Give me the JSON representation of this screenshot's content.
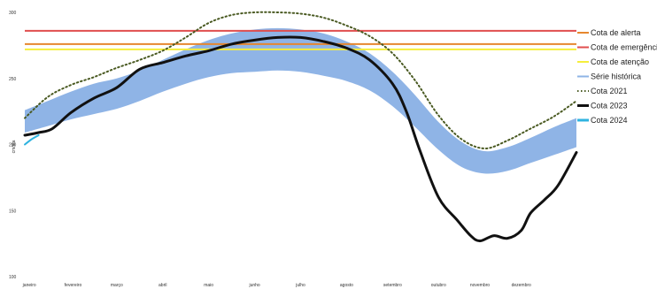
{
  "chart_data": {
    "type": "line",
    "ylabel": "cm/dia",
    "ylim": [
      100,
      300
    ],
    "yticks": [
      "100",
      "150",
      "200",
      "250",
      "300"
    ],
    "x_domain": [
      0,
      12
    ],
    "months": [
      {
        "label": "janeiro",
        "x": 0.1
      },
      {
        "label": "fevereiro",
        "x": 1.05
      },
      {
        "label": "março",
        "x": 2.0
      },
      {
        "label": "abril",
        "x": 3.0
      },
      {
        "label": "maio",
        "x": 4.0
      },
      {
        "label": "junho",
        "x": 5.0
      },
      {
        "label": "julho",
        "x": 6.0
      },
      {
        "label": "agosto",
        "x": 7.0
      },
      {
        "label": "setembro",
        "x": 8.0
      },
      {
        "label": "outubro",
        "x": 9.0
      },
      {
        "label": "novembro",
        "x": 9.9
      },
      {
        "label": "dezembro",
        "x": 10.8
      }
    ],
    "thresholds": [
      {
        "name": "Cota de alerta",
        "value": 276,
        "color": "#e6872e"
      },
      {
        "name": "Cota de emergência",
        "value": 286,
        "color": "#e04e4e"
      },
      {
        "name": "Cota de atenção",
        "value": 272,
        "color": "#f5ee3c"
      }
    ],
    "band": {
      "name": "Série histórica",
      "color": "#8fb4e6",
      "x": [
        0,
        0.5,
        1,
        1.5,
        2,
        2.5,
        3,
        3.5,
        4,
        4.5,
        5,
        5.5,
        6,
        6.5,
        7,
        7.5,
        8,
        8.5,
        9,
        9.5,
        10,
        10.5,
        11,
        11.5,
        12
      ],
      "lower": [
        209,
        214,
        219,
        223,
        227,
        233,
        240,
        246,
        251,
        254,
        255,
        256,
        255,
        252,
        248,
        241,
        229,
        213,
        196,
        183,
        178,
        180,
        186,
        192,
        198
      ],
      "upper": [
        226,
        233,
        240,
        246,
        250,
        256,
        264,
        272,
        279,
        284,
        287,
        288,
        287,
        284,
        278,
        269,
        255,
        237,
        217,
        202,
        195,
        198,
        205,
        213,
        220
      ]
    },
    "series": [
      {
        "name": "Cota 2021",
        "color": "#4a5a22",
        "style": "dotted",
        "x": [
          0,
          0.5,
          1,
          1.5,
          2,
          2.5,
          3,
          3.5,
          4,
          4.5,
          5,
          5.5,
          6,
          6.5,
          7,
          7.5,
          8,
          8.5,
          9,
          9.5,
          10,
          10.5,
          11,
          11.5,
          12
        ],
        "values": [
          220,
          236,
          245,
          251,
          258,
          264,
          271,
          281,
          292,
          298,
          300,
          300,
          299,
          296,
          290,
          282,
          269,
          248,
          222,
          204,
          197,
          203,
          212,
          221,
          233
        ]
      },
      {
        "name": "Cota 2023",
        "color": "#111111",
        "style": "solid",
        "x": [
          0,
          0.3,
          0.6,
          1,
          1.5,
          2,
          2.5,
          3,
          3.5,
          4,
          4.5,
          5,
          5.5,
          6,
          6.5,
          7,
          7.5,
          8,
          8.3,
          8.6,
          9,
          9.4,
          9.7,
          9.9,
          10.2,
          10.5,
          10.8,
          11,
          11.3,
          11.6,
          12
        ],
        "values": [
          207,
          209,
          212,
          224,
          235,
          243,
          257,
          262,
          267,
          271,
          276,
          279,
          281,
          281,
          278,
          273,
          264,
          246,
          225,
          195,
          160,
          143,
          131,
          127,
          131,
          129,
          135,
          148,
          158,
          169,
          194
        ]
      },
      {
        "name": "Cota 2024",
        "color": "#2fb3e0",
        "style": "solid",
        "x": [
          0,
          0.15,
          0.3
        ],
        "values": [
          200,
          204,
          207
        ]
      }
    ],
    "legend_position": "right"
  }
}
